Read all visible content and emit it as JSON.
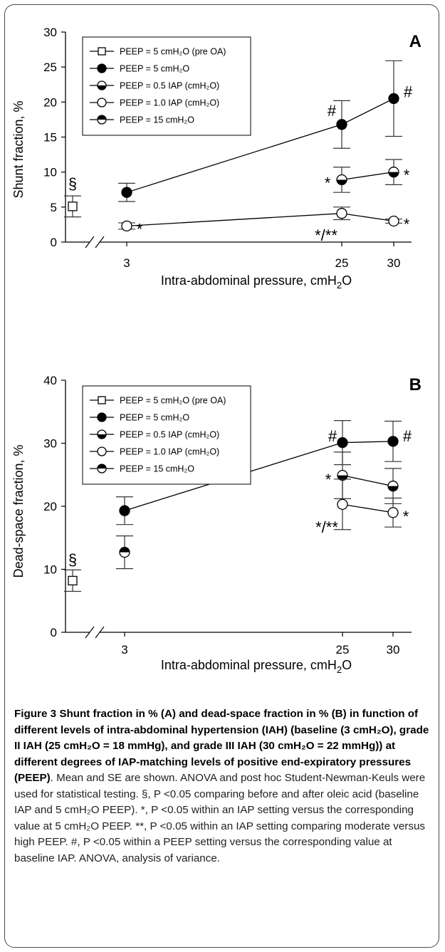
{
  "figure": {
    "caption_label": "Figure 3",
    "caption_title": "Shunt fraction in % (A) and dead-space fraction in % (B) in function of different levels of intra-abdominal hypertension (IAH) (baseline (3 cmH₂O), grade II IAH (25 cmH₂O = 18 mmHg), and grade III IAH (30 cmH₂O = 22 mmHg)) at different degrees of IAP-matching levels of positive end-expiratory pressures (PEEP)",
    "caption_text": ". Mean and SE are shown. ANOVA and post hoc Student-Newman-Keuls were used for statistical testing. §, P <0.05 comparing before and after oleic acid (baseline IAP and 5 cmH₂O PEEP). *, P <0.05 within an IAP setting versus the corresponding value at 5 cmH₂O PEEP. **, P <0.05 within an IAP setting comparing moderate versus high PEEP. #, P <0.05 within a PEEP setting versus the corresponding value at baseline IAP. ANOVA, analysis of variance."
  },
  "colors": {
    "ink": "#000000",
    "whisker": "#333333",
    "frame": "#4a4a4a"
  },
  "legend_entries": [
    {
      "label": "PEEP = 5 cmH₂O (pre OA)",
      "marker": "open-square"
    },
    {
      "label": "PEEP = 5 cmH₂O",
      "marker": "filled-circle"
    },
    {
      "label": "PEEP = 0.5 IAP (cmH₂O)",
      "marker": "half-bottom-circle"
    },
    {
      "label": "PEEP = 1.0 IAP (cmH₂O)",
      "marker": "open-circle"
    },
    {
      "label": "PEEP = 15 cmH₂O",
      "marker": "half-top-circle"
    }
  ],
  "chart_data": [
    {
      "panel": "A",
      "type": "scatter",
      "xlabel": "Intra-abdominal pressure, cmH₂O",
      "ylabel": "Shunt fraction, %",
      "ylim": [
        0,
        30
      ],
      "yticks": [
        "0",
        "5",
        "10",
        "15",
        "20",
        "25",
        "30"
      ],
      "xticks": [
        "3",
        "25",
        "30"
      ],
      "axis_break": true,
      "series": [
        {
          "name": "PEEP = 5 cmH₂O (pre OA)",
          "marker": "open-square",
          "connected": false,
          "points": [
            {
              "x": "baseline",
              "y": 5.1,
              "se": 1.5
            }
          ]
        },
        {
          "name": "PEEP = 5 cmH₂O",
          "marker": "filled-circle",
          "connected": true,
          "points": [
            {
              "x": 3,
              "y": 7.1,
              "se": 1.3
            },
            {
              "x": 25,
              "y": 16.8,
              "se": 3.4
            },
            {
              "x": 30,
              "y": 20.5,
              "se": 5.4
            }
          ]
        },
        {
          "name": "PEEP = 0.5 IAP (cmH₂O)",
          "marker": "half-bottom-circle",
          "connected": true,
          "points": [
            {
              "x": 25,
              "y": 8.9,
              "se": 1.8
            },
            {
              "x": 30,
              "y": 10.0,
              "se": 1.8
            }
          ]
        },
        {
          "name": "PEEP = 1.0 IAP (cmH₂O)",
          "marker": "open-circle",
          "connected": true,
          "points": [
            {
              "x": 3,
              "y": 2.3,
              "se": 0.45
            },
            {
              "x": 25,
              "y": 4.1,
              "se": 0.9
            },
            {
              "x": 30,
              "y": 3.0,
              "se": 0.3
            }
          ]
        }
      ],
      "annotations": [
        {
          "text": "§",
          "at_x": "baseline",
          "at_y": 8.4
        },
        {
          "text": "*",
          "at_x": 3,
          "at_y": 1.9
        },
        {
          "text": "#",
          "at_x": 25,
          "at_y": 18.8
        },
        {
          "text": "#",
          "at_x": 30,
          "at_y": 21.5
        },
        {
          "text": "*",
          "at_x": 25,
          "at_y": 8.5
        },
        {
          "text": "*",
          "at_x": 30,
          "at_y": 9.6
        },
        {
          "text": "*/**",
          "at_x": 25,
          "at_y": 1.0
        },
        {
          "text": "*",
          "at_x": 30,
          "at_y": 2.6
        }
      ]
    },
    {
      "panel": "B",
      "type": "scatter",
      "xlabel": "Intra-abdominal pressure, cmH₂O",
      "ylabel": "Dead-space fraction, %",
      "ylim": [
        0,
        40
      ],
      "yticks": [
        "0",
        "10",
        "20",
        "30",
        "40"
      ],
      "xticks": [
        "3",
        "25",
        "30"
      ],
      "axis_break": true,
      "series": [
        {
          "name": "PEEP = 5 cmH₂O (pre OA)",
          "marker": "open-square",
          "connected": false,
          "points": [
            {
              "x": "baseline",
              "y": 8.2,
              "se": 1.7
            }
          ]
        },
        {
          "name": "PEEP = 5 cmH₂O",
          "marker": "filled-circle",
          "connected": true,
          "points": [
            {
              "x": 3,
              "y": 19.3,
              "se": 2.2
            },
            {
              "x": 25,
              "y": 30.1,
              "se": 3.5
            },
            {
              "x": 30,
              "y": 30.3,
              "se": 3.2
            }
          ]
        },
        {
          "name": "PEEP = 0.5 IAP (cmH₂O)",
          "marker": "half-bottom-circle",
          "connected": true,
          "points": [
            {
              "x": 25,
              "y": 24.9,
              "se": 3.7
            },
            {
              "x": 30,
              "y": 23.2,
              "se": 2.8
            }
          ]
        },
        {
          "name": "PEEP = 1.0 IAP (cmH₂O)",
          "marker": "open-circle",
          "connected": true,
          "points": [
            {
              "x": 25,
              "y": 20.3,
              "se": 4.0
            },
            {
              "x": 30,
              "y": 19.0,
              "se": 2.3
            }
          ]
        },
        {
          "name": "PEEP = 15 cmH₂O",
          "marker": "half-top-circle",
          "connected": false,
          "points": [
            {
              "x": 3,
              "y": 12.7,
              "se": 2.6
            }
          ]
        }
      ],
      "annotations": [
        {
          "text": "§",
          "at_x": "baseline",
          "at_y": 11.6
        },
        {
          "text": "#",
          "at_x": 25,
          "at_y": 31.2
        },
        {
          "text": "#",
          "at_x": 30,
          "at_y": 31.2
        },
        {
          "text": "*",
          "at_x": 25,
          "at_y": 24.3
        },
        {
          "text": "*/**",
          "at_x": 25,
          "at_y": 16.7
        },
        {
          "text": "*",
          "at_x": 30,
          "at_y": 18.4
        }
      ]
    }
  ]
}
